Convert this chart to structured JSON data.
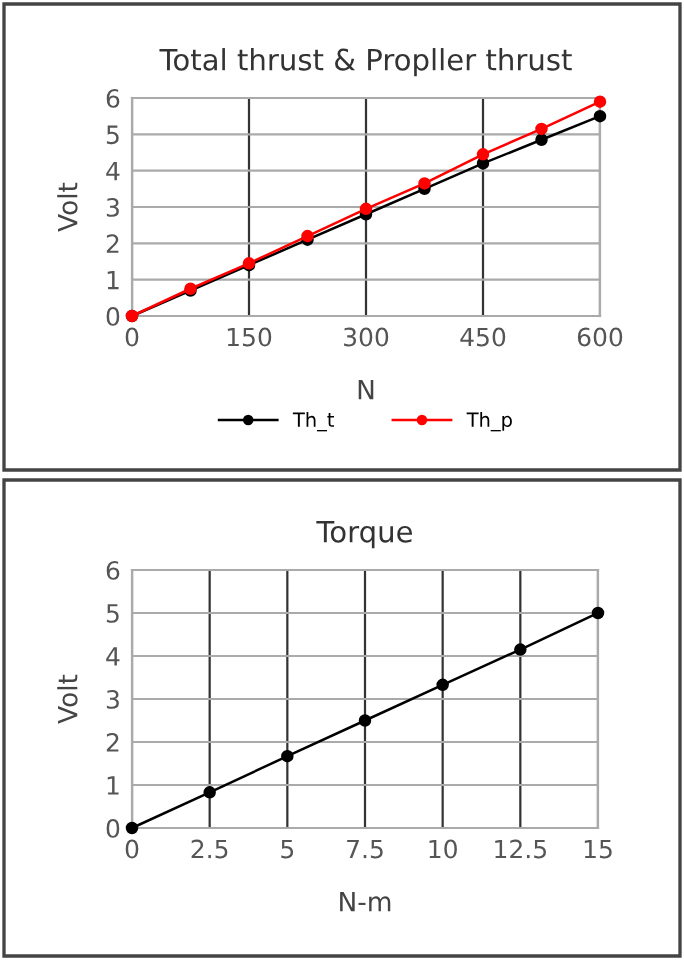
{
  "chart_data": [
    {
      "type": "line",
      "title": "Total thrust & Propller thrust",
      "xlabel": "N",
      "ylabel": "Volt",
      "x": [
        0,
        75,
        150,
        225,
        300,
        375,
        450,
        525,
        600
      ],
      "series": [
        {
          "name": "Th_t",
          "color": "#000000",
          "values": [
            0,
            0.7,
            1.4,
            2.1,
            2.8,
            3.5,
            4.2,
            4.85,
            5.5
          ]
        },
        {
          "name": "Th_p",
          "color": "#ff0000",
          "values": [
            0,
            0.75,
            1.45,
            2.2,
            2.95,
            3.65,
            4.45,
            5.15,
            5.9
          ]
        }
      ],
      "xlim": [
        0,
        600
      ],
      "xticks": [
        0,
        150,
        300,
        450,
        600
      ],
      "ylim": [
        0,
        6
      ],
      "yticks": [
        0,
        1,
        2,
        3,
        4,
        5,
        6
      ],
      "grid": true,
      "legend": "bottom",
      "marker": "circle"
    },
    {
      "type": "line",
      "title": "Torque",
      "xlabel": "N-m",
      "ylabel": "Volt",
      "x": [
        0,
        2.5,
        5,
        7.5,
        10,
        12.5,
        15
      ],
      "series": [
        {
          "color": "#000000",
          "values": [
            0,
            0.83,
            1.67,
            2.5,
            3.33,
            4.15,
            5
          ]
        }
      ],
      "xlim": [
        0,
        15
      ],
      "xticks": [
        0,
        2.5,
        5,
        7.5,
        10,
        12.5,
        15
      ],
      "ylim": [
        0,
        6
      ],
      "yticks": [
        0,
        1,
        2,
        3,
        4,
        5,
        6
      ],
      "grid": true,
      "marker": "circle"
    }
  ]
}
